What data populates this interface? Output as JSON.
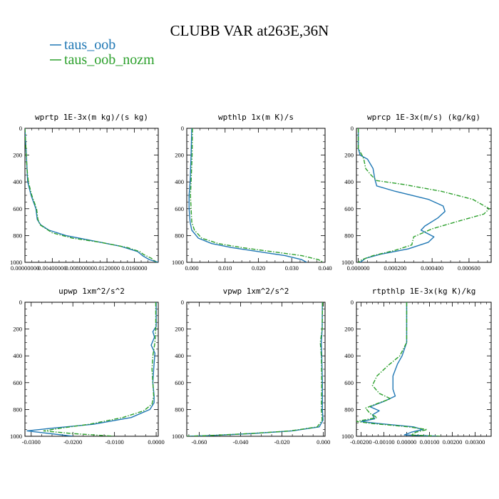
{
  "figure": {
    "title": "CLUBB VAR at263E,36N",
    "legend": [
      {
        "name": "taus_oob",
        "color": "#1f77b4",
        "dash": "solid"
      },
      {
        "name": "taus_oob_nozm",
        "color": "#2ca02c",
        "dash": "dashdot"
      }
    ]
  },
  "chart_data": [
    {
      "type": "line",
      "title": "wprtp  1E-3x(m kg)/(s kg)",
      "xlim": [
        0,
        0.0195
      ],
      "xticks": [
        0,
        0.004,
        0.008,
        0.012,
        0.016
      ],
      "xtick_labels": [
        "0.00000000",
        "0.00400000",
        "0.00800000",
        "0.0120000",
        "0.0160000"
      ],
      "ylim": [
        1000,
        0
      ],
      "yticks": [
        0,
        200,
        400,
        600,
        800,
        1000
      ],
      "series": [
        {
          "name": "taus_oob",
          "points": [
            [
              0,
              0
            ],
            [
              0.0001,
              100
            ],
            [
              0.0002,
              200
            ],
            [
              0.0003,
              300
            ],
            [
              0.0004,
              400
            ],
            [
              0.0009,
              500
            ],
            [
              0.0016,
              600
            ],
            [
              0.0018,
              680
            ],
            [
              0.0023,
              720
            ],
            [
              0.0035,
              760
            ],
            [
              0.006,
              800
            ],
            [
              0.01,
              840
            ],
            [
              0.014,
              880
            ],
            [
              0.0165,
              920
            ],
            [
              0.0172,
              950
            ],
            [
              0.0182,
              980
            ],
            [
              0.0195,
              1000
            ]
          ]
        },
        {
          "name": "taus_oob_nozm",
          "points": [
            [
              0,
              0
            ],
            [
              0.0001,
              100
            ],
            [
              0.0002,
              200
            ],
            [
              0.0003,
              300
            ],
            [
              0.0005,
              400
            ],
            [
              0.001,
              500
            ],
            [
              0.0017,
              600
            ],
            [
              0.0019,
              680
            ],
            [
              0.0022,
              720
            ],
            [
              0.004,
              780
            ],
            [
              0.007,
              820
            ],
            [
              0.011,
              850
            ],
            [
              0.015,
              890
            ],
            [
              0.0168,
              920
            ],
            [
              0.0173,
              940
            ],
            [
              0.0185,
              970
            ],
            [
              0.0192,
              1000
            ]
          ]
        }
      ]
    },
    {
      "type": "line",
      "title": "wpthlp  1x(m K)/s",
      "xlim": [
        -0.0015,
        0.04
      ],
      "xticks": [
        0,
        0.01,
        0.02,
        0.03,
        0.04
      ],
      "xtick_labels": [
        "0.000",
        "0.010",
        "0.020",
        "0.030",
        "0.040"
      ],
      "ylim": [
        1000,
        0
      ],
      "yticks": [
        0,
        200,
        400,
        600,
        800,
        1000
      ],
      "series": [
        {
          "name": "taus_oob",
          "points": [
            [
              0,
              0
            ],
            [
              -0.0002,
              200
            ],
            [
              -0.0005,
              400
            ],
            [
              -0.0008,
              500
            ],
            [
              -0.0008,
              600
            ],
            [
              -0.0005,
              700
            ],
            [
              0,
              760
            ],
            [
              0.002,
              820
            ],
            [
              0.006,
              860
            ],
            [
              0.012,
              890
            ],
            [
              0.02,
              920
            ],
            [
              0.028,
              950
            ],
            [
              0.033,
              980
            ],
            [
              0.0345,
              1000
            ]
          ]
        },
        {
          "name": "taus_oob_nozm",
          "points": [
            [
              0.0002,
              0
            ],
            [
              0.0001,
              200
            ],
            [
              -0.0002,
              400
            ],
            [
              -0.0004,
              500
            ],
            [
              -0.0002,
              600
            ],
            [
              0,
              700
            ],
            [
              0.0008,
              760
            ],
            [
              0.003,
              820
            ],
            [
              0.008,
              860
            ],
            [
              0.015,
              890
            ],
            [
              0.024,
              920
            ],
            [
              0.033,
              950
            ],
            [
              0.038,
              980
            ],
            [
              0.0395,
              1000
            ]
          ]
        }
      ]
    },
    {
      "type": "line",
      "title": "wprcp  1E-3x(m/s) (kg/kg)",
      "xlim": [
        -1e-05,
        0.00072
      ],
      "xticks": [
        0,
        0.0002,
        0.0004,
        0.0006
      ],
      "xtick_labels": [
        "0.000000",
        "0.000200",
        "0.000400",
        "0.000600"
      ],
      "ylim": [
        1000,
        0
      ],
      "yticks": [
        0,
        200,
        400,
        600,
        800,
        1000
      ],
      "series": [
        {
          "name": "taus_oob",
          "points": [
            [
              0,
              0
            ],
            [
              0,
              150
            ],
            [
              1e-05,
              200
            ],
            [
              5e-05,
              230
            ],
            [
              8e-05,
              300
            ],
            [
              9e-05,
              380
            ],
            [
              0.0001,
              430
            ],
            [
              0.0002,
              470
            ],
            [
              0.00038,
              530
            ],
            [
              0.00046,
              580
            ],
            [
              0.00047,
              620
            ],
            [
              0.00043,
              670
            ],
            [
              0.00036,
              730
            ],
            [
              0.00034,
              760
            ],
            [
              0.00041,
              810
            ],
            [
              0.00038,
              850
            ],
            [
              0.00027,
              900
            ],
            [
              0.00012,
              940
            ],
            [
              4e-05,
              970
            ],
            [
              1e-05,
              1000
            ]
          ]
        },
        {
          "name": "taus_oob_nozm",
          "points": [
            [
              0,
              0
            ],
            [
              0,
              150
            ],
            [
              2e-05,
              200
            ],
            [
              3e-05,
              230
            ],
            [
              4e-05,
              300
            ],
            [
              7e-05,
              350
            ],
            [
              0.0001,
              390
            ],
            [
              0.00025,
              420
            ],
            [
              0.00045,
              470
            ],
            [
              0.00062,
              530
            ],
            [
              0.00071,
              600
            ],
            [
              0.00068,
              640
            ],
            [
              0.00055,
              690
            ],
            [
              0.0004,
              750
            ],
            [
              0.0003,
              810
            ],
            [
              0.00029,
              870
            ],
            [
              0.0002,
              910
            ],
            [
              8e-05,
              950
            ],
            [
              2e-05,
              980
            ],
            [
              0,
              1000
            ]
          ]
        }
      ]
    },
    {
      "type": "line",
      "title": "upwp  1xm^2/s^2",
      "xlim": [
        -0.0315,
        0.0005
      ],
      "xticks": [
        -0.03,
        -0.02,
        -0.01,
        0
      ],
      "xtick_labels": [
        "-0.0300",
        "-0.0200",
        "-0.0100",
        "0.0000"
      ],
      "ylim": [
        1000,
        0
      ],
      "yticks": [
        0,
        200,
        400,
        600,
        800,
        1000
      ],
      "series": [
        {
          "name": "taus_oob",
          "points": [
            [
              0,
              0
            ],
            [
              0,
              180
            ],
            [
              -0.0008,
              220
            ],
            [
              -0.0004,
              260
            ],
            [
              -0.0012,
              320
            ],
            [
              -0.0003,
              380
            ],
            [
              -0.0006,
              500
            ],
            [
              -0.0008,
              600
            ],
            [
              -0.0005,
              700
            ],
            [
              -0.0005,
              750
            ],
            [
              -0.0015,
              800
            ],
            [
              -0.006,
              860
            ],
            [
              -0.015,
              910
            ],
            [
              -0.025,
              940
            ],
            [
              -0.031,
              960
            ],
            [
              -0.0255,
              980
            ],
            [
              -0.02,
              1000
            ]
          ]
        },
        {
          "name": "taus_oob_nozm",
          "points": [
            [
              -0.0001,
              0
            ],
            [
              -0.0001,
              200
            ],
            [
              -0.0003,
              300
            ],
            [
              -0.0008,
              400
            ],
            [
              -0.001,
              500
            ],
            [
              -0.0008,
              600
            ],
            [
              -0.0006,
              700
            ],
            [
              -0.001,
              760
            ],
            [
              -0.003,
              810
            ],
            [
              -0.008,
              860
            ],
            [
              -0.016,
              910
            ],
            [
              -0.023,
              940
            ],
            [
              -0.027,
              960
            ],
            [
              -0.02,
              980
            ],
            [
              -0.01,
              1000
            ]
          ]
        }
      ]
    },
    {
      "type": "line",
      "title": "vpwp  1xm^2/s^2",
      "xlim": [
        -0.066,
        0.0008
      ],
      "xticks": [
        -0.06,
        -0.04,
        -0.02,
        0
      ],
      "xtick_labels": [
        "-0.060",
        "-0.040",
        "-0.020",
        "0.000"
      ],
      "ylim": [
        1000,
        0
      ],
      "yticks": [
        0,
        200,
        400,
        600,
        800,
        1000
      ],
      "series": [
        {
          "name": "taus_oob",
          "points": [
            [
              -0.0005,
              0
            ],
            [
              -0.0006,
              200
            ],
            [
              -0.001,
              300
            ],
            [
              -0.0008,
              400
            ],
            [
              -0.0005,
              600
            ],
            [
              -0.0005,
              800
            ],
            [
              -0.0002,
              880
            ],
            [
              -0.002,
              930
            ],
            [
              -0.015,
              960
            ],
            [
              -0.035,
              980
            ],
            [
              -0.055,
              995
            ],
            [
              -0.066,
              1000
            ]
          ]
        },
        {
          "name": "taus_oob_nozm",
          "points": [
            [
              -0.0004,
              0
            ],
            [
              -0.0006,
              200
            ],
            [
              -0.0015,
              300
            ],
            [
              -0.001,
              400
            ],
            [
              -0.0008,
              600
            ],
            [
              -0.001,
              800
            ],
            [
              -0.0006,
              880
            ],
            [
              -0.003,
              930
            ],
            [
              -0.016,
              960
            ],
            [
              -0.036,
              980
            ],
            [
              -0.056,
              995
            ],
            [
              -0.066,
              1000
            ]
          ]
        }
      ]
    },
    {
      "type": "line",
      "title": "rtpthlp  1E-3x(kg K)/kg",
      "xlim": [
        -0.0022,
        0.0037
      ],
      "xticks": [
        -0.002,
        -0.001,
        0,
        0.001,
        0.002,
        0.003
      ],
      "xtick_labels": [
        "-0.00200",
        "-0.00100",
        "0.00000",
        "0.00100",
        "0.00200",
        "0.00300"
      ],
      "ylim": [
        1000,
        0
      ],
      "yticks": [
        0,
        200,
        400,
        600,
        800,
        1000
      ],
      "series": [
        {
          "name": "taus_oob",
          "points": [
            [
              0,
              0
            ],
            [
              0,
              200
            ],
            [
              0,
              300
            ],
            [
              -0.0002,
              400
            ],
            [
              -0.0004,
              460
            ],
            [
              -0.0006,
              550
            ],
            [
              -0.0006,
              650
            ],
            [
              -0.0005,
              700
            ],
            [
              -0.001,
              740
            ],
            [
              -0.0016,
              780
            ],
            [
              -0.0012,
              810
            ],
            [
              -0.0015,
              840
            ],
            [
              -0.0014,
              870
            ],
            [
              -0.002,
              890
            ],
            [
              -0.0012,
              905
            ],
            [
              0.0003,
              930
            ],
            [
              0.0007,
              950
            ],
            [
              0.0002,
              970
            ],
            [
              -0.0001,
              990
            ],
            [
              0.0014,
              1000
            ]
          ]
        },
        {
          "name": "taus_oob_nozm",
          "points": [
            [
              0,
              0
            ],
            [
              0,
              200
            ],
            [
              0,
              300
            ],
            [
              -0.0003,
              400
            ],
            [
              -0.0008,
              470
            ],
            [
              -0.0013,
              550
            ],
            [
              -0.0015,
              620
            ],
            [
              -0.0012,
              680
            ],
            [
              -0.0007,
              720
            ],
            [
              -0.0012,
              750
            ],
            [
              -0.0018,
              790
            ],
            [
              -0.0016,
              830
            ],
            [
              -0.0013,
              860
            ],
            [
              -0.0022,
              890
            ],
            [
              -0.0015,
              905
            ],
            [
              0.0001,
              930
            ],
            [
              0.0009,
              950
            ],
            [
              0.0004,
              970
            ],
            [
              0.0002,
              990
            ],
            [
              0.0015,
              1000
            ]
          ]
        }
      ]
    }
  ]
}
